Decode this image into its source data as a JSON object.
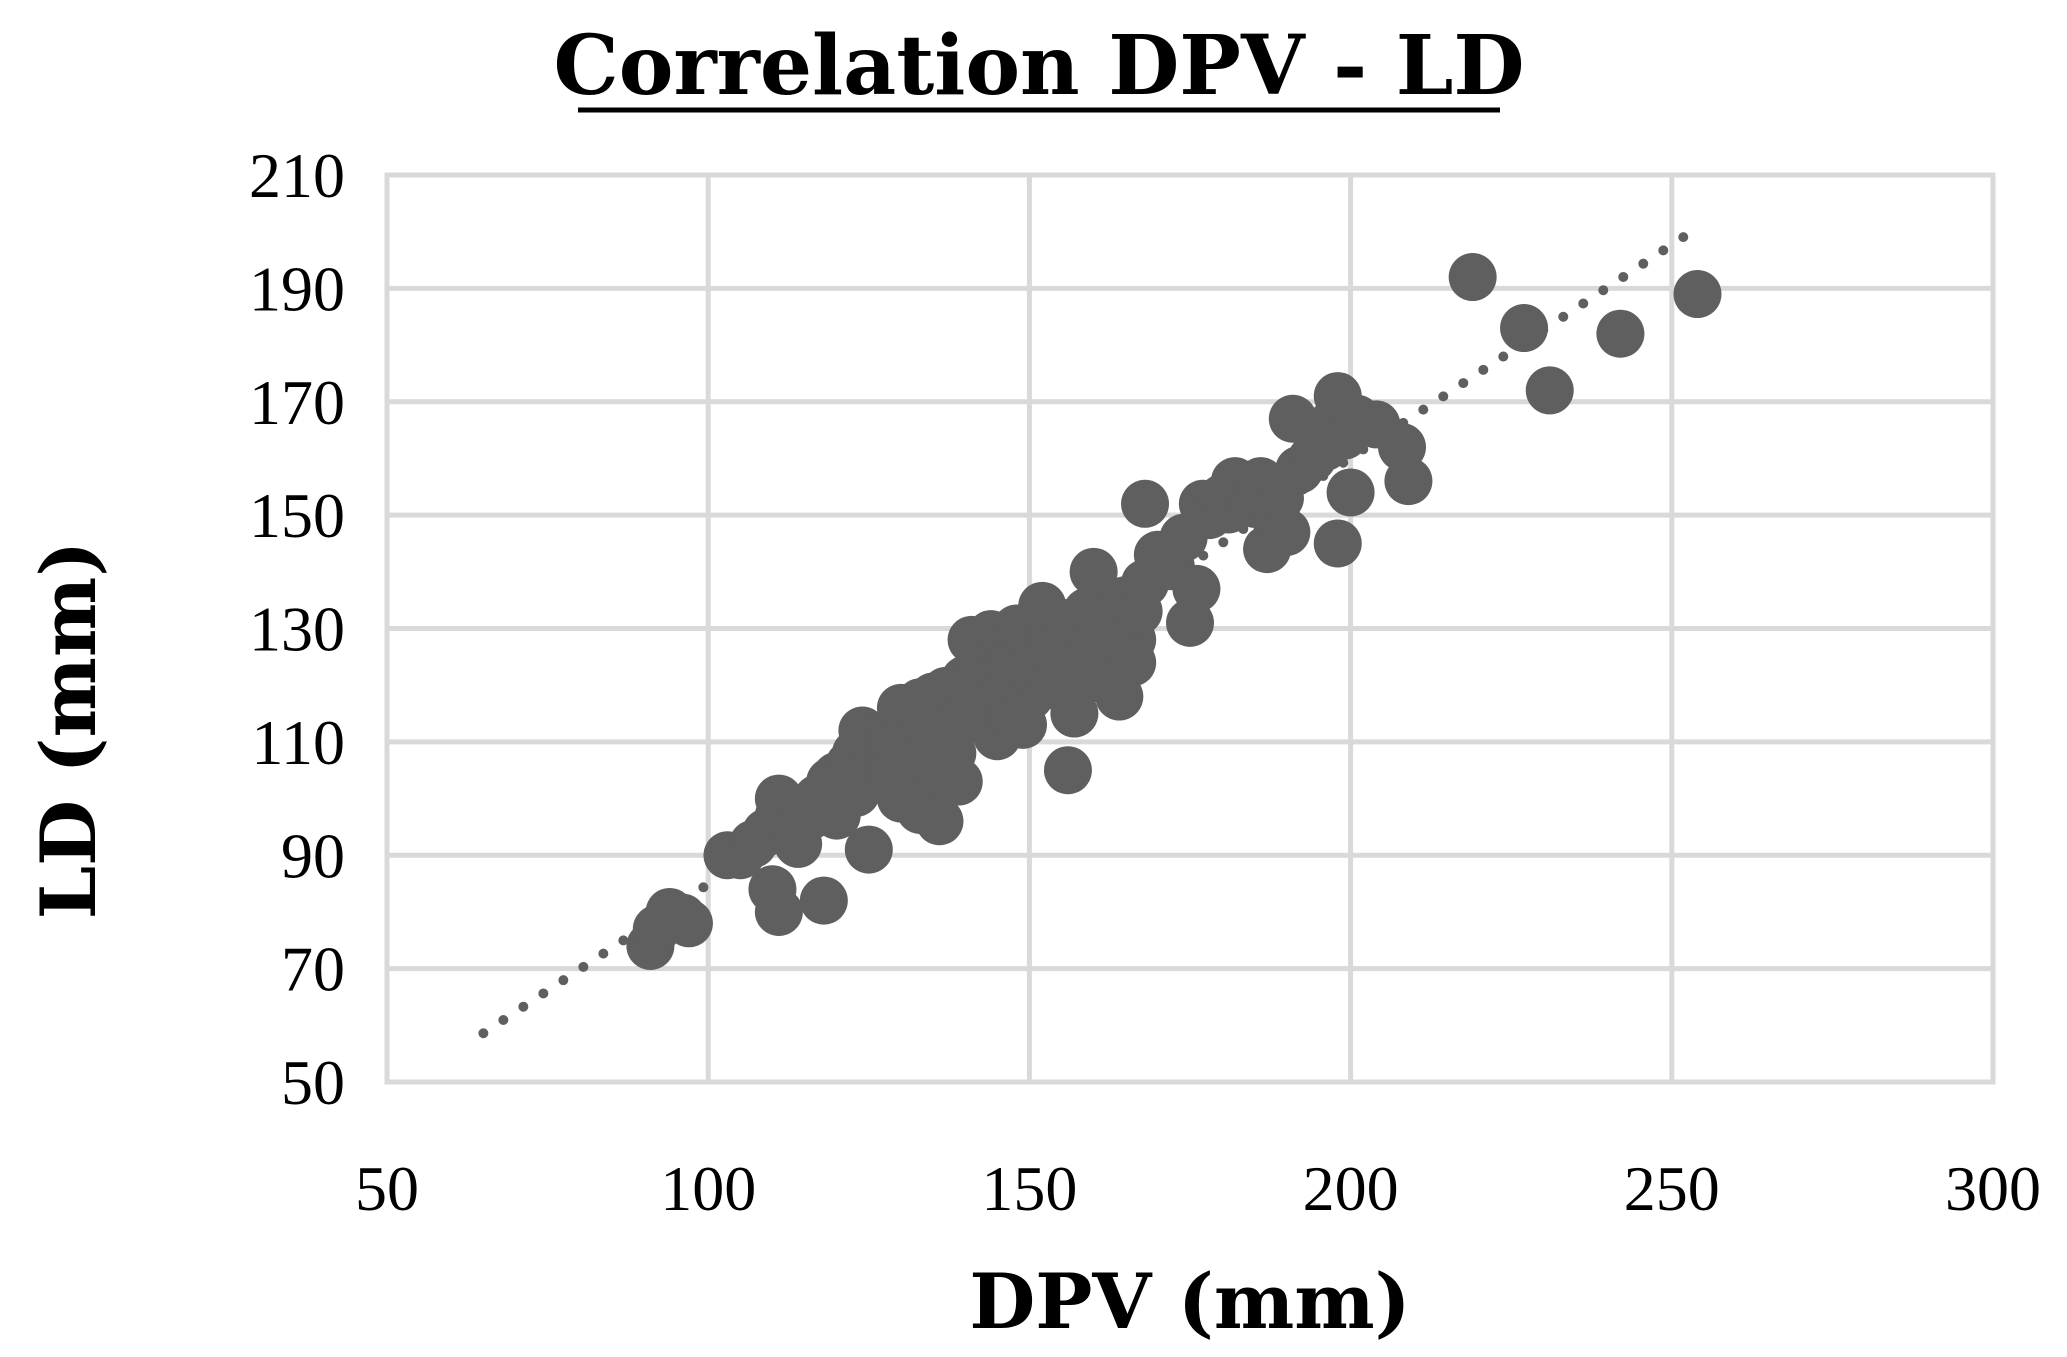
{
  "chart_data": {
    "type": "scatter",
    "title": "Correlation DPV - LD",
    "xlabel": "DPV (mm)",
    "ylabel": "LD (mm)",
    "xlim": [
      50,
      300
    ],
    "ylim": [
      50,
      210
    ],
    "xticks": [
      50,
      100,
      150,
      200,
      250,
      300
    ],
    "yticks": [
      50,
      70,
      90,
      110,
      130,
      150,
      170,
      190,
      210
    ],
    "grid": true,
    "colors": {
      "points": "#5f5f5f",
      "trendline": "#5f5f5f",
      "grid": "#d9d9d9"
    },
    "series": [
      {
        "points": [
          [
            91,
            74
          ],
          [
            92,
            77
          ],
          [
            94,
            80
          ],
          [
            96,
            79
          ],
          [
            97,
            78
          ],
          [
            103,
            90
          ],
          [
            105,
            90
          ],
          [
            107,
            92
          ],
          [
            109,
            94
          ],
          [
            110,
            84
          ],
          [
            111,
            97
          ],
          [
            111,
            100
          ],
          [
            111,
            80
          ],
          [
            113,
            95
          ],
          [
            114,
            92
          ],
          [
            115,
            98
          ],
          [
            116,
            97
          ],
          [
            117,
            100
          ],
          [
            118,
            99
          ],
          [
            118,
            82
          ],
          [
            119,
            103
          ],
          [
            120,
            104
          ],
          [
            120,
            97
          ],
          [
            121,
            100
          ],
          [
            122,
            106
          ],
          [
            123,
            101
          ],
          [
            123,
            108
          ],
          [
            124,
            112
          ],
          [
            124,
            104
          ],
          [
            125,
            91
          ],
          [
            125,
            110
          ],
          [
            126,
            107
          ],
          [
            127,
            111
          ],
          [
            128,
            103
          ],
          [
            128,
            109
          ],
          [
            129,
            112
          ],
          [
            129,
            105
          ],
          [
            130,
            116
          ],
          [
            130,
            100
          ],
          [
            131,
            114
          ],
          [
            131,
            108
          ],
          [
            132,
            111
          ],
          [
            133,
            98
          ],
          [
            133,
            117
          ],
          [
            134,
            113
          ],
          [
            134,
            106
          ],
          [
            135,
            110
          ],
          [
            135,
            118
          ],
          [
            136,
            104
          ],
          [
            136,
            96
          ],
          [
            137,
            115
          ],
          [
            137,
            119
          ],
          [
            138,
            112
          ],
          [
            138,
            108
          ],
          [
            139,
            103
          ],
          [
            140,
            121
          ],
          [
            140,
            116
          ],
          [
            141,
            128
          ],
          [
            141,
            118
          ],
          [
            142,
            123
          ],
          [
            142,
            114
          ],
          [
            143,
            126
          ],
          [
            143,
            120
          ],
          [
            144,
            129
          ],
          [
            144,
            117
          ],
          [
            145,
            122
          ],
          [
            145,
            111
          ],
          [
            146,
            127
          ],
          [
            146,
            119
          ],
          [
            147,
            124
          ],
          [
            147,
            115
          ],
          [
            148,
            130
          ],
          [
            148,
            121
          ],
          [
            149,
            125
          ],
          [
            149,
            113
          ],
          [
            150,
            128
          ],
          [
            150,
            118
          ],
          [
            151,
            122
          ],
          [
            151,
            126
          ],
          [
            152,
            134
          ],
          [
            152,
            124
          ],
          [
            153,
            120
          ],
          [
            154,
            129
          ],
          [
            154,
            127
          ],
          [
            155,
            123
          ],
          [
            156,
            131
          ],
          [
            156,
            105
          ],
          [
            157,
            125
          ],
          [
            157,
            115
          ],
          [
            158,
            129
          ],
          [
            159,
            133
          ],
          [
            159,
            121
          ],
          [
            160,
            140
          ],
          [
            160,
            127
          ],
          [
            161,
            130
          ],
          [
            162,
            125
          ],
          [
            163,
            132
          ],
          [
            164,
            129
          ],
          [
            164,
            118
          ],
          [
            165,
            135
          ],
          [
            166,
            128
          ],
          [
            166,
            124
          ],
          [
            167,
            133
          ],
          [
            168,
            138
          ],
          [
            168,
            152
          ],
          [
            170,
            143
          ],
          [
            172,
            141
          ],
          [
            174,
            146
          ],
          [
            175,
            131
          ],
          [
            176,
            137
          ],
          [
            177,
            152
          ],
          [
            178,
            150
          ],
          [
            180,
            153
          ],
          [
            181,
            151
          ],
          [
            182,
            156
          ],
          [
            183,
            155
          ],
          [
            184,
            154
          ],
          [
            185,
            152
          ],
          [
            186,
            156
          ],
          [
            187,
            144
          ],
          [
            188,
            150
          ],
          [
            189,
            153
          ],
          [
            190,
            147
          ],
          [
            191,
            167
          ],
          [
            192,
            158
          ],
          [
            194,
            160
          ],
          [
            196,
            162
          ],
          [
            197,
            166
          ],
          [
            198,
            171
          ],
          [
            198,
            145
          ],
          [
            199,
            164
          ],
          [
            200,
            154
          ],
          [
            201,
            167
          ],
          [
            204,
            166
          ],
          [
            208,
            162
          ],
          [
            209,
            156
          ],
          [
            219,
            192
          ],
          [
            227,
            183
          ],
          [
            231,
            172
          ],
          [
            242,
            182
          ],
          [
            254,
            189
          ]
        ]
      }
    ],
    "trendline": {
      "style": "dotted",
      "x_range": [
        65,
        252
      ],
      "y_at_start": 58.6,
      "y_at_end": 199.2
    }
  }
}
